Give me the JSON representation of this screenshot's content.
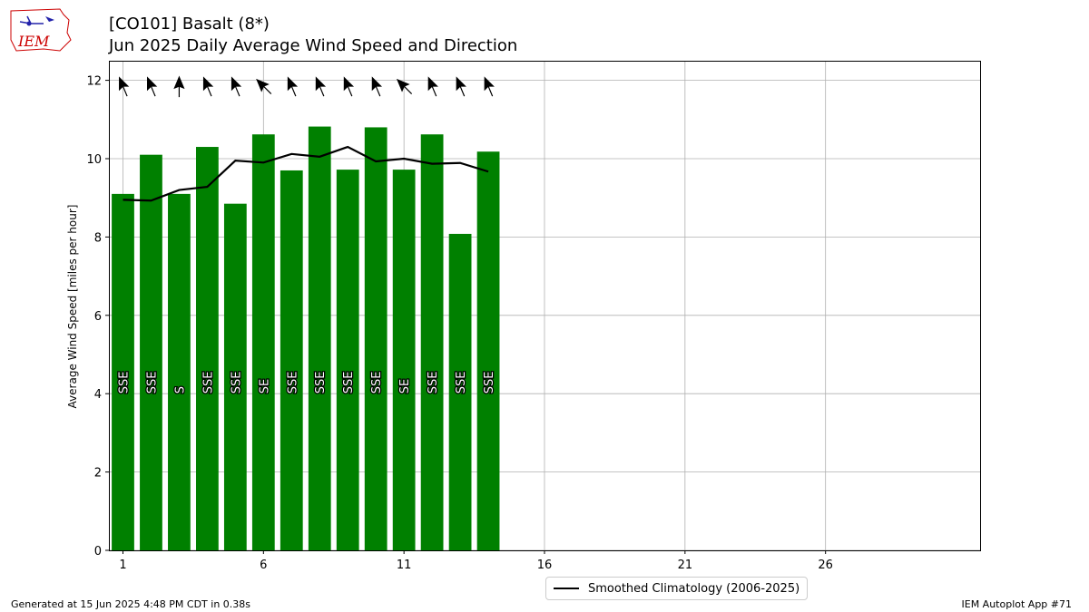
{
  "header": {
    "title_line1": "[CO101] Basalt (8*)",
    "title_line2": "Jun 2025 Daily Average Wind Speed and Direction",
    "logo_text": "IEM"
  },
  "footer": {
    "generated": "Generated at 15 Jun 2025 4:48 PM CDT in 0.38s",
    "app": "IEM Autoplot App #71"
  },
  "colors": {
    "bars": "#008000",
    "line": "#000000",
    "grid": "#b0b0b0",
    "logo": "#cc0000"
  },
  "chart_data": {
    "type": "bar",
    "title": "Jun 2025 Daily Average Wind Speed and Direction",
    "ylabel": "Average Wind Speed [miles per hour]",
    "xlabel": "",
    "xlim": [
      0.5,
      31.5
    ],
    "ylim": [
      0,
      12.5
    ],
    "xticks": [
      1,
      6,
      11,
      16,
      21,
      26
    ],
    "yticks": [
      0,
      2,
      4,
      6,
      8,
      10,
      12
    ],
    "grid": true,
    "legend_position": "bottom-center",
    "days": [
      1,
      2,
      3,
      4,
      5,
      6,
      7,
      8,
      9,
      10,
      11,
      12,
      13,
      14
    ],
    "speeds": [
      9.1,
      10.1,
      9.1,
      10.3,
      8.85,
      10.62,
      9.7,
      10.82,
      9.72,
      10.8,
      9.72,
      10.62,
      8.08,
      10.18
    ],
    "directions": [
      "SSE",
      "SSE",
      "S",
      "SSE",
      "SSE",
      "SE",
      "SSE",
      "SSE",
      "SSE",
      "SSE",
      "SE",
      "SSE",
      "SSE",
      "SSE"
    ],
    "series": [
      {
        "name": "Smoothed Climatology (2006-2025)",
        "x": [
          1,
          2,
          3,
          4,
          5,
          6,
          7,
          8,
          9,
          10,
          11,
          12,
          13,
          14
        ],
        "values": [
          8.95,
          8.93,
          9.2,
          9.28,
          9.95,
          9.9,
          10.12,
          10.05,
          10.3,
          9.93,
          10.0,
          9.87,
          9.89,
          9.67
        ]
      }
    ]
  }
}
